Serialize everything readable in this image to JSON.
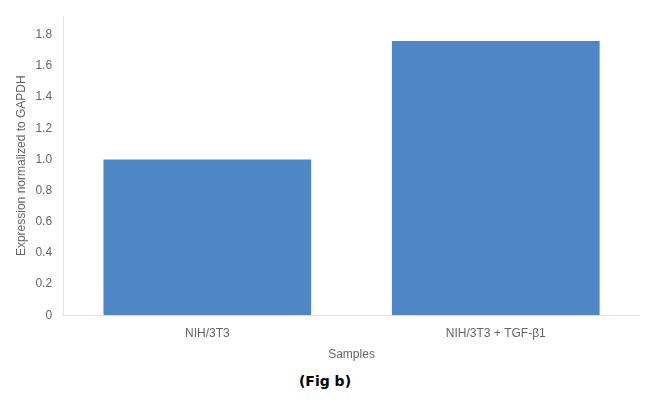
{
  "chart_data": {
    "type": "bar",
    "categories": [
      "NIH/3T3",
      "NIH/3T3 + TGF-β1"
    ],
    "values": [
      1.0,
      1.76
    ],
    "color": "#4f86c6",
    "xlabel": "Samples",
    "ylabel": "Expression normalized to GAPDH",
    "ylim": [
      0,
      1.92
    ],
    "yticks": [
      0,
      0.2,
      0.4,
      0.6,
      0.8,
      {
        "value": 1.0,
        "label": "1.0"
      },
      1.2,
      1.4,
      1.6,
      1.8
    ],
    "grid": false,
    "annotations": [
      "(Fig b)"
    ]
  }
}
